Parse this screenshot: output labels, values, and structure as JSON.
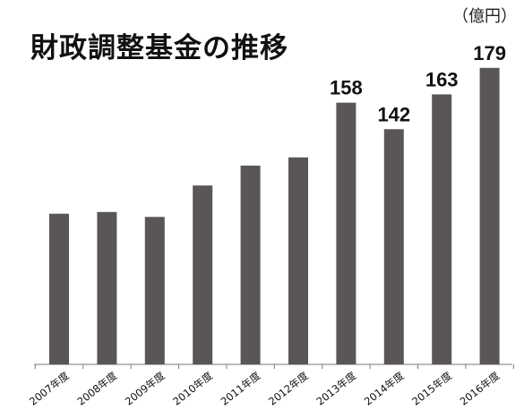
{
  "colors": {
    "bar": "#5a5656",
    "axis": "#7a7a7a",
    "text": "#111111"
  },
  "chart_data": {
    "type": "bar",
    "title": "財政調整基金の推移",
    "unit": "（億円）",
    "categories": [
      "2007年度",
      "2008年度",
      "2009年度",
      "2010年度",
      "2011年度",
      "2012年度",
      "2013年度",
      "2014年度",
      "2015年度",
      "2016年度"
    ],
    "values": [
      91,
      92,
      89,
      108,
      120,
      125,
      158,
      142,
      163,
      179
    ],
    "data_labels": [
      "",
      "",
      "",
      "",
      "",
      "",
      "158",
      "142",
      "163",
      "179"
    ],
    "ylim": [
      0,
      200
    ],
    "grid": false,
    "legend": "none"
  }
}
